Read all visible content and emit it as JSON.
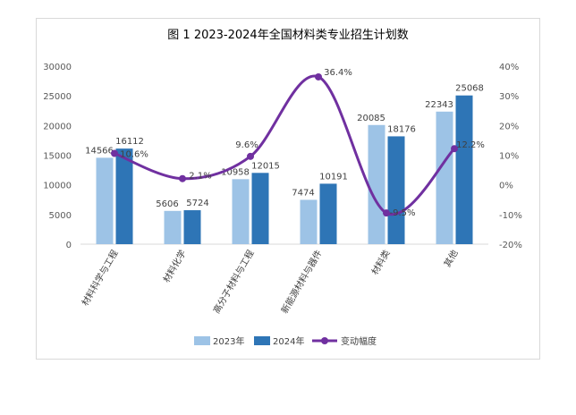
{
  "chart_data": {
    "type": "bar",
    "title": "图 1 2023-2024年全国材料类专业招生计划数",
    "categories": [
      "材料科学与工程",
      "材料化学",
      "高分子材料与工程",
      "新能源材料与器件",
      "材料类",
      "其他"
    ],
    "series": [
      {
        "name": "2023年",
        "type": "bar",
        "axis": "left",
        "color": "#9dc3e6",
        "values": [
          14566,
          5606,
          10958,
          7474,
          20085,
          22343
        ]
      },
      {
        "name": "2024年",
        "type": "bar",
        "axis": "left",
        "color": "#2e75b6",
        "values": [
          16112,
          5724,
          12015,
          10191,
          18176,
          25068
        ]
      },
      {
        "name": "变动幅度",
        "type": "line",
        "axis": "right",
        "color": "#7030a0",
        "values": [
          10.6,
          2.1,
          9.6,
          36.4,
          -9.5,
          12.2
        ],
        "labels": [
          "10.6%",
          "2.1%",
          "9.6%",
          "36.4%",
          "-9.5%",
          "12.2%"
        ]
      }
    ],
    "y_left": {
      "min": 0,
      "max": 30000,
      "ticks": [
        "0",
        "5000",
        "10000",
        "15000",
        "20000",
        "25000",
        "30000"
      ]
    },
    "y_right": {
      "min": -20,
      "max": 40,
      "ticks": [
        "-20%",
        "-10%",
        "0%",
        "10%",
        "20%",
        "30%",
        "40%"
      ]
    },
    "grid": false,
    "legend_position": "bottom"
  }
}
